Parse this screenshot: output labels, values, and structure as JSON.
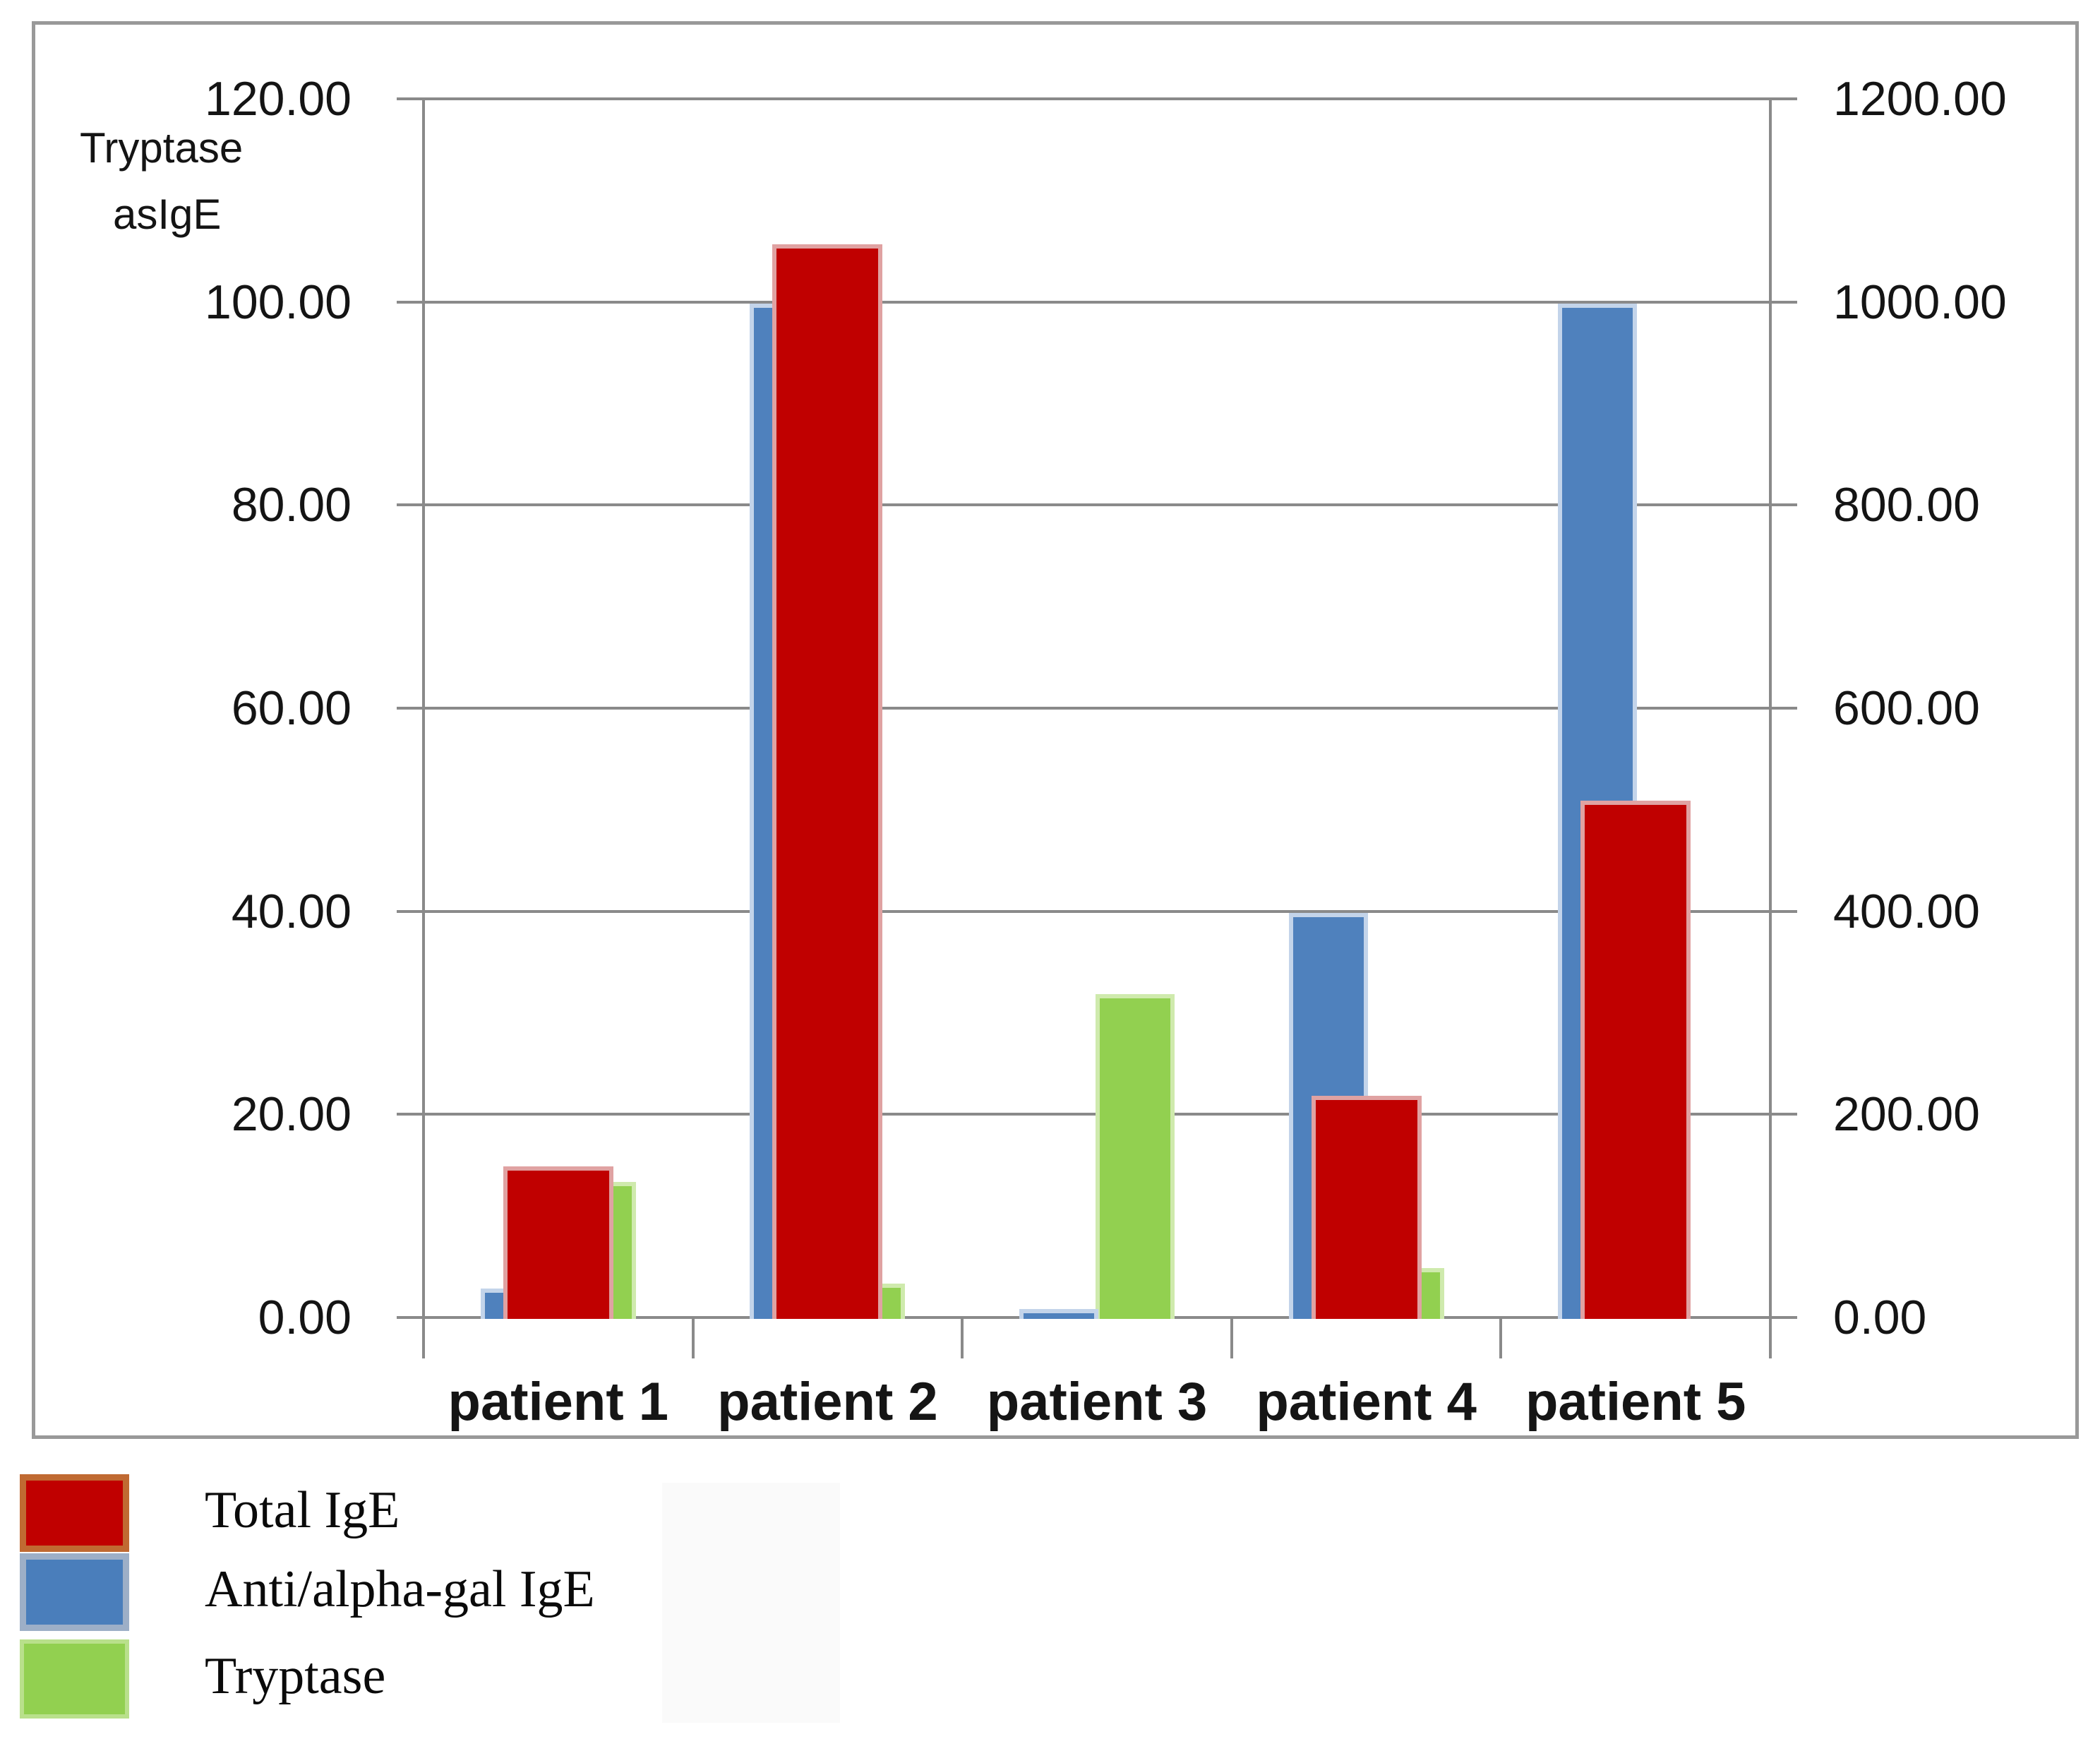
{
  "chart_data": {
    "type": "bar",
    "title": "",
    "categories": [
      "patient 1",
      "patient 2",
      "patient 3",
      "patient 4",
      "patient 5"
    ],
    "series": [
      {
        "name": "Total IgE",
        "axis": "right",
        "color": "#c00000",
        "values": [
          150,
          1058,
          0,
          220,
          510
        ]
      },
      {
        "name": "Anti/alpha-gal IgE",
        "axis": "left",
        "color": "#4f81bd",
        "values": [
          3,
          100,
          1,
          40,
          100
        ]
      },
      {
        "name": "Tryptase",
        "axis": "left",
        "color": "#92d050",
        "values": [
          13.5,
          3.5,
          32,
          5,
          0
        ]
      }
    ],
    "left_axis": {
      "title_line1": "Tryptase",
      "title_line2": "asIgE",
      "ticks": [
        "120.00",
        "100.00",
        "80.00",
        "60.00",
        "40.00",
        "20.00",
        "0.00"
      ],
      "min": 0,
      "max": 120,
      "step": 20
    },
    "right_axis": {
      "ticks": [
        "1200.00",
        "1000.00",
        "800.00",
        "600.00",
        "400.00",
        "200.00",
        "0.00"
      ],
      "min": 0,
      "max": 1200,
      "step": 200
    },
    "grid": true,
    "legend_position": "bottom-left"
  },
  "legend": {
    "items": [
      {
        "label": "Total IgE",
        "color": "#c00000"
      },
      {
        "label": "Anti/alpha-gal IgE",
        "color": "#4f81bd"
      },
      {
        "label": "Tryptase",
        "color": "#92d050"
      }
    ]
  }
}
